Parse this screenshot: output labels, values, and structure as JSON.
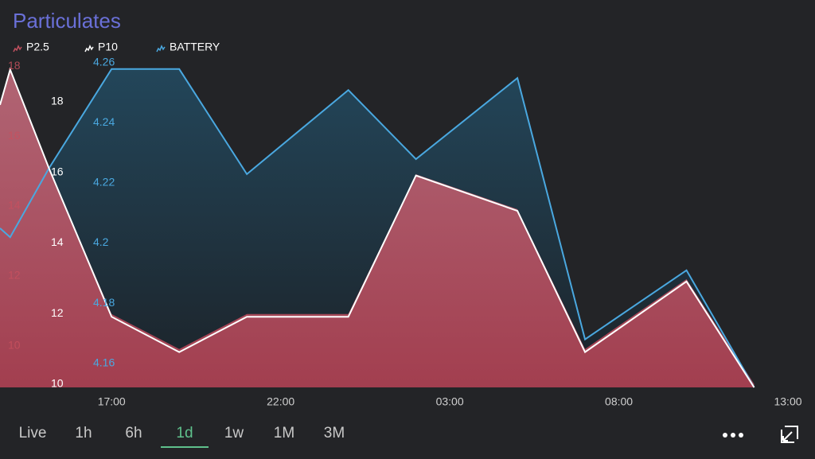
{
  "chart_data": {
    "type": "line",
    "title": "Particulates",
    "x": [
      13.7,
      14,
      15.15,
      17,
      19,
      21,
      24,
      26,
      29,
      31,
      34,
      36
    ],
    "xlim": [
      13.7,
      37.8
    ],
    "xticks": [
      {
        "value": 17,
        "label": "17:00"
      },
      {
        "value": 22,
        "label": "22:00"
      },
      {
        "value": 27,
        "label": "03:00"
      },
      {
        "value": 32,
        "label": "08:00"
      },
      {
        "value": 37,
        "label": "13:00"
      }
    ],
    "series": [
      {
        "name": "P2.5",
        "color": "#c0505f",
        "axis": "y",
        "fill": true,
        "values": [
          17,
          18,
          15.2,
          11,
          10,
          11,
          11,
          15,
          14,
          10,
          12,
          9
        ]
      },
      {
        "name": "P10",
        "color": "#ffffff",
        "axis": "y2",
        "fill": false,
        "values": [
          18,
          19,
          16.2,
          12,
          11,
          12,
          12,
          16,
          15,
          11,
          13,
          10
        ]
      },
      {
        "name": "BATTERY",
        "color": "#4aa8e0",
        "axis": "y3",
        "fill": true,
        "values": [
          4.206,
          4.203,
          4.226,
          4.259,
          4.259,
          4.224,
          4.252,
          4.229,
          4.256,
          4.169,
          4.192,
          4.153
        ]
      }
    ],
    "ylim": [
      8.9,
      18.1
    ],
    "yticks": [
      10,
      12,
      14,
      16,
      18
    ],
    "y2lim": [
      10,
      19.1
    ],
    "y2ticks": [
      10,
      12,
      14,
      16,
      18
    ],
    "y3lim": [
      4.153,
      4.26
    ],
    "y3ticks": [
      4.16,
      4.18,
      4.2,
      4.22,
      4.24,
      4.26
    ]
  },
  "range_buttons": [
    "Live",
    "1h",
    "6h",
    "1d",
    "1w",
    "1M",
    "3M"
  ],
  "selected_index": 3
}
